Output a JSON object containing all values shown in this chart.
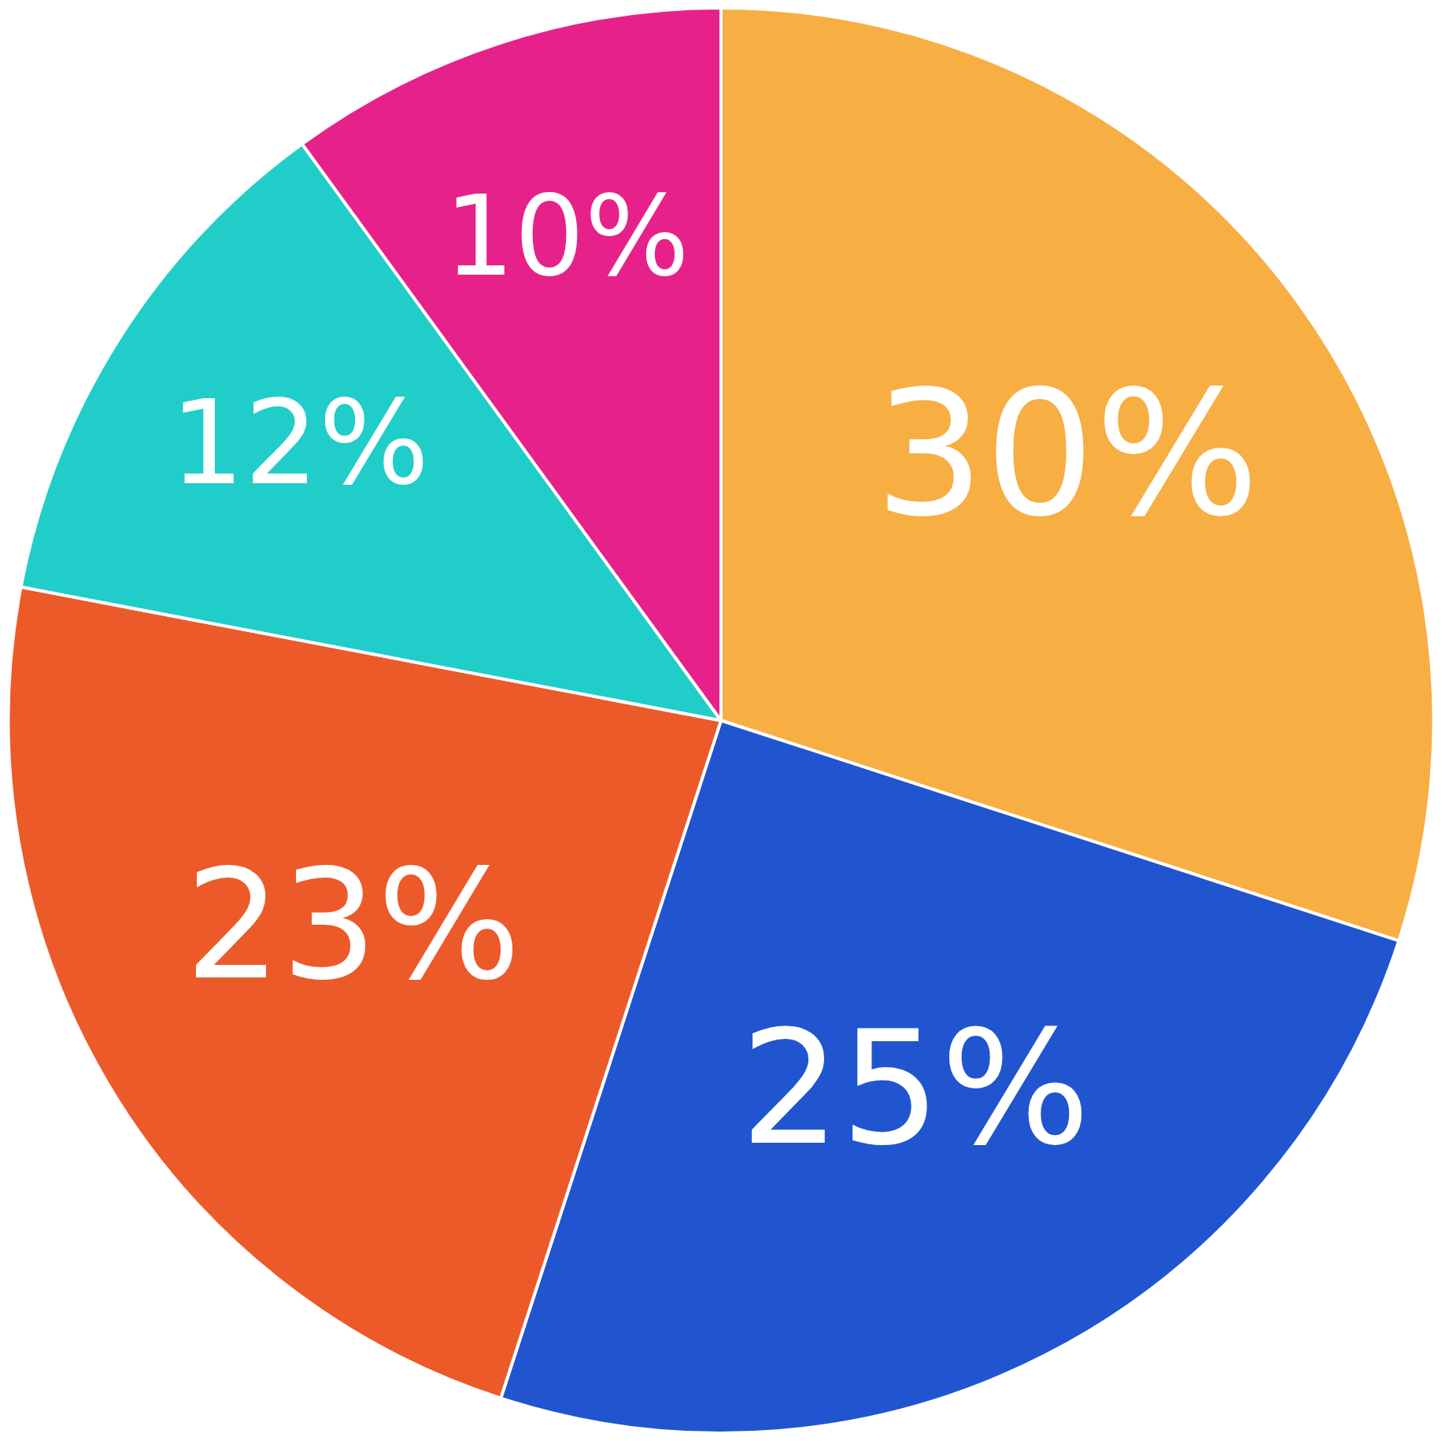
{
  "chart_data": {
    "type": "pie",
    "categories": [
      null,
      null,
      null,
      null,
      null
    ],
    "values": [
      30,
      25,
      23,
      12,
      10
    ],
    "colors": [
      "#f7ae42",
      "#2055cf",
      "#ec5a2a",
      "#20cdc9",
      "#e6228a"
    ],
    "value_labels": [
      "30%",
      "25%",
      "23%",
      "12%",
      "10%"
    ]
  }
}
